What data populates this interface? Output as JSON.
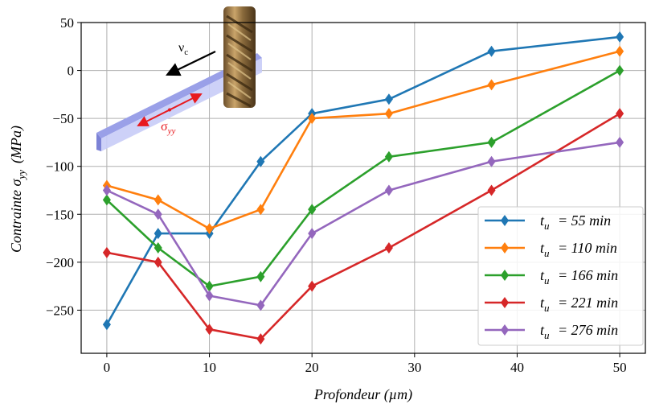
{
  "chart_data": {
    "type": "line",
    "xlabel": "Profondeur (µm)",
    "ylabel_main": "Contrainte σ",
    "ylabel_sub": "yy",
    "ylabel_unit": "(MPa)",
    "xlim": [
      -2.5,
      52.5
    ],
    "ylim": [
      -295,
      50
    ],
    "xticks": [
      0,
      10,
      20,
      30,
      40,
      50
    ],
    "yticks": [
      50,
      0,
      -50,
      -100,
      -150,
      -200,
      -250
    ],
    "grid": true,
    "legend_position": "lower-right",
    "x": [
      0,
      5,
      10,
      15,
      20,
      27.5,
      37.5,
      50
    ],
    "series": [
      {
        "name": "t_u = 55 min",
        "var": "t",
        "sub": "u",
        "label": " = 55 min",
        "color": "#1f77b4",
        "values": [
          -265,
          -170,
          -170,
          -95,
          -45,
          -30,
          20,
          35
        ]
      },
      {
        "name": "t_u = 110 min",
        "var": "t",
        "sub": "u",
        "label": " = 110 min",
        "color": "#ff7f0e",
        "values": [
          -120,
          -135,
          -165,
          -145,
          -50,
          -45,
          -15,
          20
        ]
      },
      {
        "name": "t_u = 166 min",
        "var": "t",
        "sub": "u",
        "label": " = 166 min",
        "color": "#2ca02c",
        "values": [
          -135,
          -185,
          -225,
          -215,
          -145,
          -90,
          -75,
          0
        ]
      },
      {
        "name": "t_u = 221 min",
        "var": "t",
        "sub": "u",
        "label": " = 221 min",
        "color": "#d62728",
        "values": [
          -190,
          -200,
          -270,
          -280,
          -225,
          -185,
          -125,
          -45
        ]
      },
      {
        "name": "t_u = 276 min",
        "var": "t",
        "sub": "u",
        "label": " = 276 min",
        "color": "#9467bd",
        "values": [
          -125,
          -150,
          -235,
          -245,
          -170,
          -125,
          -95,
          -75
        ]
      }
    ],
    "inset": {
      "velocity_label": "ν",
      "velocity_sub": "c",
      "stress_label": "σ",
      "stress_sub": "yy",
      "stress_color": "#e8191e"
    }
  }
}
